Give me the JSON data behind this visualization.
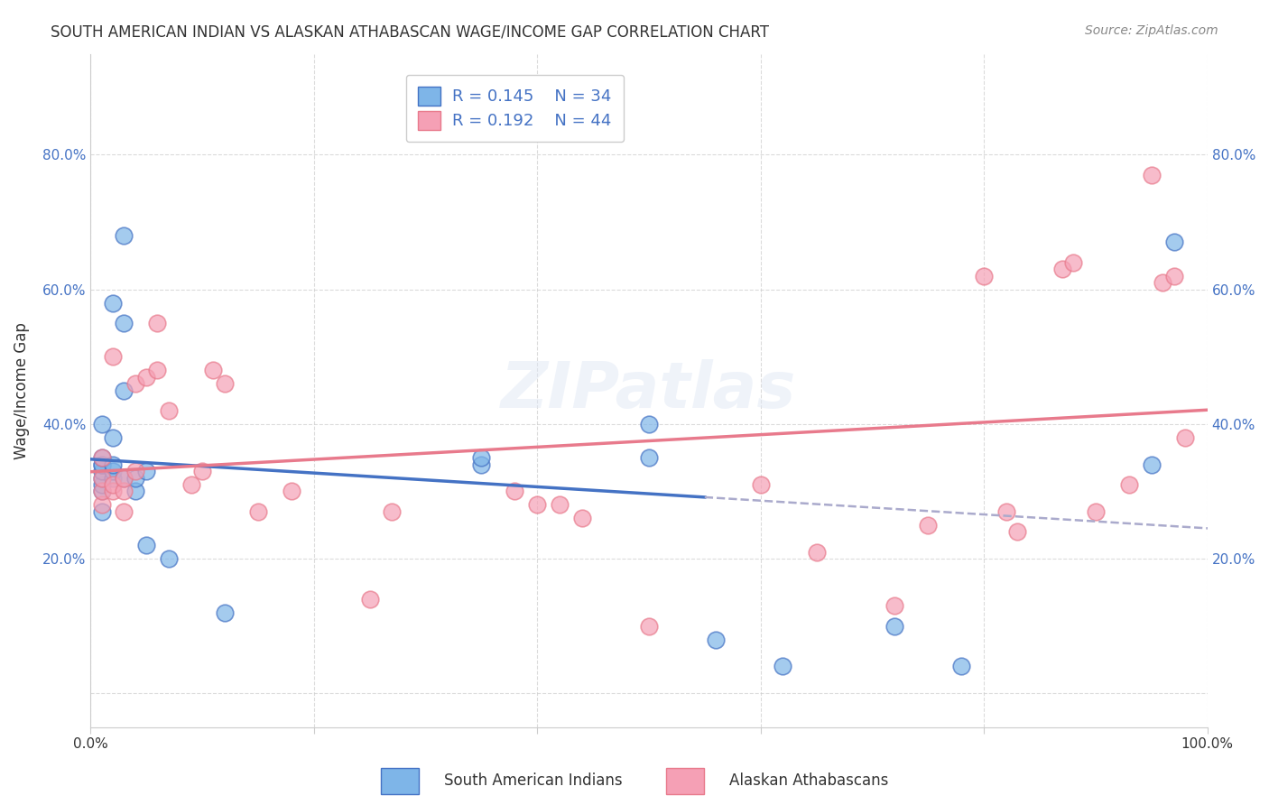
{
  "title": "SOUTH AMERICAN INDIAN VS ALASKAN ATHABASCAN WAGE/INCOME GAP CORRELATION CHART",
  "source": "Source: ZipAtlas.com",
  "ylabel": "Wage/Income Gap",
  "xlabel": "",
  "xlim": [
    0,
    1.0
  ],
  "ylim": [
    -0.05,
    0.95
  ],
  "xticks": [
    0.0,
    0.2,
    0.4,
    0.6,
    0.8,
    1.0
  ],
  "xticklabels": [
    "0.0%",
    "",
    "",
    "",
    "",
    "100.0%"
  ],
  "yticks": [
    0.0,
    0.2,
    0.4,
    0.6,
    0.8
  ],
  "yticklabels": [
    "",
    "20.0%",
    "40.0%",
    "60.0%",
    "80.0%"
  ],
  "legend_r1": "R = 0.145",
  "legend_n1": "N = 34",
  "legend_r2": "R = 0.192",
  "legend_n2": "N = 44",
  "color_blue": "#7EB5E8",
  "color_pink": "#F5A0B5",
  "color_blue_line": "#4472C4",
  "color_pink_line": "#E87A8C",
  "color_dashed": "#AAAACC",
  "color_text_blue": "#4472C4",
  "color_grid": "#CCCCCC",
  "blue_x": [
    0.01,
    0.01,
    0.01,
    0.01,
    0.01,
    0.01,
    0.01,
    0.01,
    0.01,
    0.02,
    0.02,
    0.02,
    0.02,
    0.02,
    0.03,
    0.03,
    0.03,
    0.03,
    0.04,
    0.04,
    0.05,
    0.05,
    0.07,
    0.12,
    0.35,
    0.35,
    0.5,
    0.5,
    0.56,
    0.62,
    0.72,
    0.78,
    0.95,
    0.97
  ],
  "blue_y": [
    0.27,
    0.3,
    0.31,
    0.32,
    0.33,
    0.34,
    0.34,
    0.35,
    0.4,
    0.32,
    0.33,
    0.34,
    0.38,
    0.58,
    0.32,
    0.45,
    0.55,
    0.68,
    0.3,
    0.32,
    0.22,
    0.33,
    0.2,
    0.12,
    0.34,
    0.35,
    0.35,
    0.4,
    0.08,
    0.04,
    0.1,
    0.04,
    0.34,
    0.67
  ],
  "pink_x": [
    0.01,
    0.01,
    0.01,
    0.01,
    0.02,
    0.02,
    0.02,
    0.03,
    0.03,
    0.03,
    0.04,
    0.04,
    0.05,
    0.06,
    0.06,
    0.07,
    0.09,
    0.1,
    0.11,
    0.12,
    0.15,
    0.18,
    0.25,
    0.27,
    0.38,
    0.4,
    0.42,
    0.44,
    0.5,
    0.6,
    0.65,
    0.72,
    0.75,
    0.8,
    0.82,
    0.83,
    0.87,
    0.88,
    0.9,
    0.93,
    0.95,
    0.96,
    0.97,
    0.98
  ],
  "pink_y": [
    0.28,
    0.3,
    0.32,
    0.35,
    0.3,
    0.31,
    0.5,
    0.27,
    0.3,
    0.32,
    0.33,
    0.46,
    0.47,
    0.48,
    0.55,
    0.42,
    0.31,
    0.33,
    0.48,
    0.46,
    0.27,
    0.3,
    0.14,
    0.27,
    0.3,
    0.28,
    0.28,
    0.26,
    0.1,
    0.31,
    0.21,
    0.13,
    0.25,
    0.62,
    0.27,
    0.24,
    0.63,
    0.64,
    0.27,
    0.31,
    0.77,
    0.61,
    0.62,
    0.38
  ]
}
